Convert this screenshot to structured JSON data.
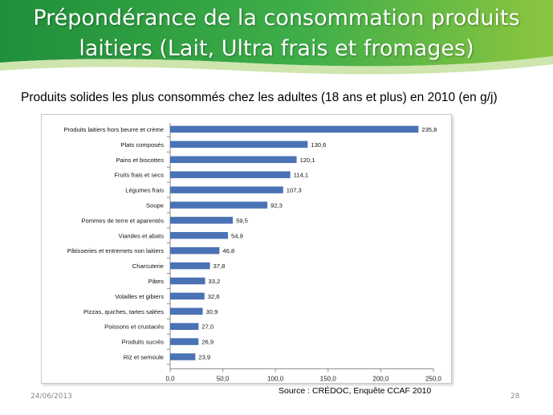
{
  "slide": {
    "title_line1": "Prépondérance de la consommation produits",
    "title_line2": "laitiers (Lait, Ultra frais et fromages)",
    "footer_date": "24/06/2013",
    "footer_page": "28",
    "banner_colors": {
      "dark": "#1f8f3a",
      "mid": "#3fae49",
      "light": "#8cc63f",
      "accent": "#c6e1a0"
    }
  },
  "chart_data": {
    "type": "bar",
    "orientation": "horizontal",
    "title": "Produits solides les plus consommés chez les adultes (18 ans et plus) en 2010 (en g/j)",
    "source": "Source : CRÉDOC, Enquête CCAF 2010",
    "categories": [
      "Produits laitiers hors beurre et crème",
      "Plats composés",
      "Pains et biscottes",
      "Fruits frais et secs",
      "Légumes frais",
      "Soupe",
      "Pommes de terre et aparentés",
      "Viandes et abats",
      "Pâtisseries et entremets non laitiers",
      "Charcuterie",
      "Pâtes",
      "Volailles et gibiers",
      "Pizzas, quiches, tartes salées",
      "Poissons et crustacés",
      "Produits sucrés",
      "Riz et semoule"
    ],
    "values": [
      235.8,
      130.6,
      120.1,
      114.1,
      107.3,
      92.3,
      59.5,
      54.9,
      46.8,
      37.8,
      33.2,
      32.6,
      30.9,
      27.0,
      26.9,
      23.9
    ],
    "value_labels": [
      "235,8",
      "130,6",
      "120,1",
      "114,1",
      "107,3",
      "92,3",
      "59,5",
      "54,9",
      "46,8",
      "37,8",
      "33,2",
      "32,6",
      "30,9",
      "27,0",
      "26,9",
      "23,9"
    ],
    "xlim": [
      0,
      250
    ],
    "xticks": [
      0,
      50,
      100,
      150,
      200,
      250
    ],
    "xtick_labels": [
      "0,0",
      "50,0",
      "100,0",
      "150,0",
      "200,0",
      "250,0"
    ],
    "bar_color": "#4a72b4",
    "grid": false,
    "legend": "none"
  }
}
